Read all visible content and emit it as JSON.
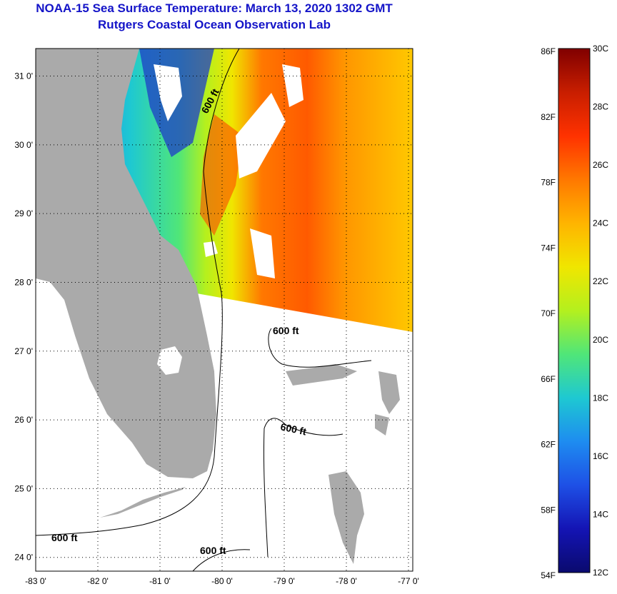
{
  "header": {
    "title": "NOAA-15 Sea Surface Temperature:  March 13, 2020 1302 GMT",
    "subtitle": "Rutgers Coastal Ocean Observation Lab"
  },
  "map": {
    "lon_range": [
      -83,
      -77
    ],
    "lat_range": [
      23.8,
      31.4
    ],
    "lat_ticks": [
      {
        "lat": 31,
        "label": "31 0'"
      },
      {
        "lat": 30,
        "label": "30 0'"
      },
      {
        "lat": 29,
        "label": "29 0'"
      },
      {
        "lat": 28,
        "label": "28 0'"
      },
      {
        "lat": 27,
        "label": "27 0'"
      },
      {
        "lat": 26,
        "label": "26 0'"
      },
      {
        "lat": 25,
        "label": "25 0'"
      },
      {
        "lat": 24,
        "label": "24 0'"
      }
    ],
    "lon_ticks": [
      {
        "lon": -83,
        "label": "-83 0'"
      },
      {
        "lon": -82,
        "label": "-82 0'"
      },
      {
        "lon": -81,
        "label": "-81 0'"
      },
      {
        "lon": -80,
        "label": "-80 0'"
      },
      {
        "lon": -79,
        "label": "-79 0'"
      },
      {
        "lon": -78,
        "label": "-78 0'"
      },
      {
        "lon": -77,
        "label": "-77 0'"
      }
    ],
    "contour_labels": [
      "600 ft",
      "600 ft",
      "600 ft",
      "600 ft",
      "600 ft"
    ],
    "land_color": "#aaaaaa",
    "cloud_color": "#ffffff"
  },
  "colorbar": {
    "fahrenheit_labels": [
      "86F",
      "82F",
      "78F",
      "74F",
      "70F",
      "66F",
      "62F",
      "58F",
      "54F"
    ],
    "celsius_labels": [
      "30C",
      "28C",
      "26C",
      "24C",
      "22C",
      "20C",
      "18C",
      "16C",
      "14C",
      "12C"
    ],
    "colors": [
      "#800000",
      "#c81e00",
      "#ff3200",
      "#ff7800",
      "#ffb400",
      "#f0e600",
      "#b4f01e",
      "#50e678",
      "#1ec8d2",
      "#1e8cf0",
      "#1e50e6",
      "#1414b4",
      "#0a0a6e"
    ]
  }
}
